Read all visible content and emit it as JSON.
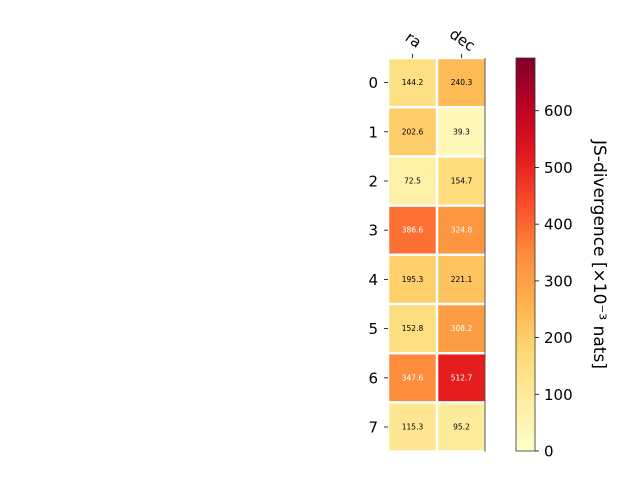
{
  "chart_data": {
    "type": "heatmap",
    "title": "",
    "columns": [
      "ra",
      "dec"
    ],
    "rows": [
      "0",
      "1",
      "2",
      "3",
      "4",
      "5",
      "6",
      "7"
    ],
    "values": [
      [
        144.2,
        240.3
      ],
      [
        202.6,
        39.3
      ],
      [
        72.5,
        154.7
      ],
      [
        386.6,
        324.8
      ],
      [
        195.3,
        221.1
      ],
      [
        152.8,
        308.2
      ],
      [
        347.6,
        512.7
      ],
      [
        115.3,
        95.2
      ]
    ],
    "value_labels": [
      [
        "144.2",
        "240.3"
      ],
      [
        "202.6",
        "39.3"
      ],
      [
        "72.5",
        "154.7"
      ],
      [
        "386.6",
        "324.8"
      ],
      [
        "195.3",
        "221.1"
      ],
      [
        "152.8",
        "308.2"
      ],
      [
        "347.6",
        "512.7"
      ],
      [
        "115.3",
        "95.2"
      ]
    ],
    "colorbar": {
      "label": "JS-divergence [×10⁻³ nats]",
      "range": [
        0,
        693
      ],
      "ticks": [
        0,
        100,
        200,
        300,
        400,
        500,
        600
      ],
      "tick_labels": [
        "0",
        "100",
        "200",
        "300",
        "400",
        "500",
        "600"
      ],
      "colormap": "YlOrRd"
    },
    "grid": false
  }
}
